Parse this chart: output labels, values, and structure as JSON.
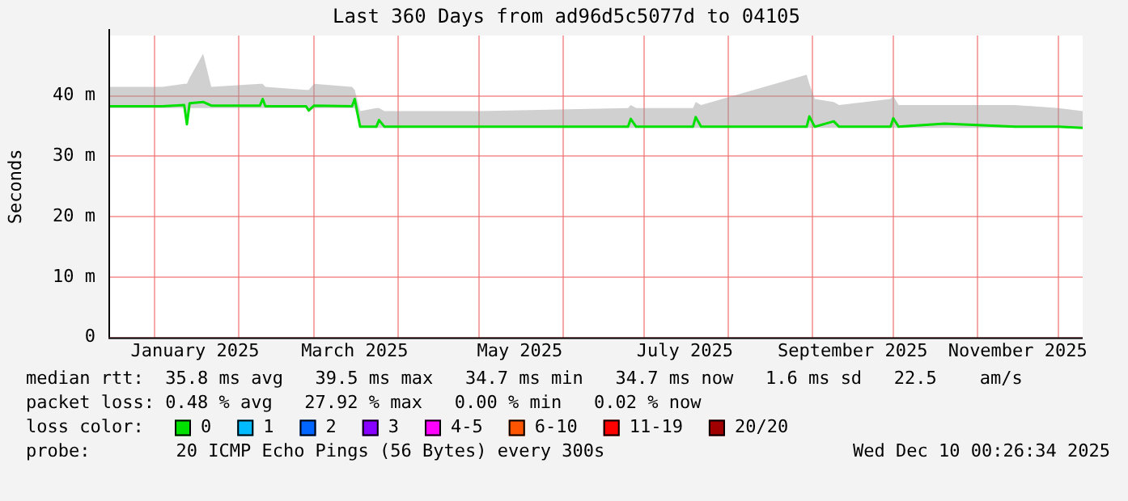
{
  "chart_data": {
    "type": "line",
    "title": "Last 360 Days from ad96d5c5077d to 04105",
    "ylabel": "Seconds",
    "legend_title": "loss color:",
    "legend": "bottom",
    "x": [
      "2024-12-15",
      "2025-01-04",
      "2025-01-12",
      "2025-01-13",
      "2025-01-14",
      "2025-01-19",
      "2025-01-22",
      "2025-02-09",
      "2025-02-10",
      "2025-02-11",
      "2025-02-26",
      "2025-02-27",
      "2025-03-01",
      "2025-03-15",
      "2025-03-16",
      "2025-03-18",
      "2025-03-24",
      "2025-03-25",
      "2025-03-27",
      "2025-05-01",
      "2025-06-25",
      "2025-06-26",
      "2025-06-28",
      "2025-07-19",
      "2025-07-20",
      "2025-07-22",
      "2025-08-30",
      "2025-08-31",
      "2025-09-02",
      "2025-09-09",
      "2025-09-11",
      "2025-09-30",
      "2025-10-01",
      "2025-10-03",
      "2025-10-20",
      "2025-11-15",
      "2025-12-01",
      "2025-12-10"
    ],
    "series": [
      {
        "name": "0",
        "color": "#00e000",
        "values": [
          38.3,
          38.3,
          38.5,
          35.3,
          38.8,
          39.0,
          38.4,
          38.4,
          39.5,
          38.3,
          38.3,
          37.6,
          38.4,
          38.3,
          39.5,
          34.9,
          34.9,
          36.0,
          34.9,
          34.9,
          34.9,
          36.2,
          34.9,
          34.9,
          36.5,
          34.9,
          34.9,
          36.6,
          34.9,
          35.8,
          34.9,
          34.9,
          36.3,
          34.9,
          35.4,
          34.9,
          34.9,
          34.7
        ],
        "lower": [
          38.0,
          38.0,
          38.0,
          35.0,
          38.0,
          38.0,
          38.0,
          38.0,
          38.0,
          38.0,
          38.0,
          37.3,
          38.0,
          38.0,
          38.0,
          34.7,
          34.7,
          34.7,
          34.7,
          34.7,
          34.7,
          34.7,
          34.7,
          34.7,
          34.7,
          34.7,
          34.7,
          34.7,
          34.7,
          34.7,
          34.7,
          34.7,
          34.7,
          34.7,
          34.7,
          34.7,
          34.7,
          34.6
        ],
        "upper": [
          41.5,
          41.5,
          42.0,
          42.0,
          43.0,
          47.0,
          41.5,
          42.0,
          42.0,
          41.5,
          41.0,
          41.0,
          42.0,
          41.5,
          41.0,
          37.5,
          38.0,
          38.0,
          37.5,
          37.5,
          38.0,
          38.5,
          38.0,
          38.0,
          39.0,
          38.5,
          43.5,
          42.0,
          39.5,
          39.0,
          38.5,
          39.5,
          40.0,
          38.5,
          38.5,
          38.5,
          38.0,
          37.5
        ]
      },
      {
        "name": "1",
        "color": "#00bbff",
        "values": [
          null,
          null,
          null,
          null,
          null,
          null,
          null,
          null,
          null,
          null,
          null,
          null,
          null,
          null,
          null,
          null,
          null,
          null,
          null,
          null,
          null,
          null,
          null,
          null,
          null,
          null,
          null,
          null,
          null,
          null,
          null,
          null,
          null,
          null,
          null,
          null,
          null,
          null
        ]
      },
      {
        "name": "2",
        "color": "#0066ff",
        "values": [
          null,
          null,
          null,
          null,
          null,
          null,
          null,
          null,
          null,
          null,
          null,
          null,
          null,
          null,
          null,
          null,
          null,
          null,
          null,
          null,
          null,
          null,
          null,
          null,
          null,
          null,
          null,
          null,
          null,
          null,
          null,
          null,
          null,
          null,
          null,
          null,
          null,
          null
        ]
      },
      {
        "name": "3",
        "color": "#8800ff",
        "values": [
          null,
          null,
          null,
          null,
          null,
          null,
          null,
          null,
          null,
          null,
          null,
          null,
          null,
          null,
          null,
          null,
          null,
          null,
          null,
          null,
          null,
          null,
          null,
          null,
          null,
          null,
          null,
          null,
          null,
          null,
          null,
          null,
          null,
          null,
          null,
          null,
          null,
          null
        ]
      },
      {
        "name": "4-5",
        "color": "#ff00ff",
        "values": [
          null,
          null,
          null,
          null,
          null,
          null,
          null,
          null,
          null,
          null,
          null,
          null,
          null,
          null,
          null,
          null,
          null,
          null,
          null,
          null,
          null,
          null,
          null,
          null,
          null,
          null,
          null,
          null,
          null,
          null,
          null,
          null,
          null,
          null,
          null,
          null,
          null,
          null
        ]
      },
      {
        "name": "6-10",
        "color": "#ff5500",
        "values": [
          null,
          null,
          null,
          null,
          null,
          null,
          null,
          null,
          null,
          null,
          null,
          null,
          null,
          null,
          null,
          null,
          null,
          null,
          null,
          null,
          null,
          null,
          null,
          null,
          null,
          null,
          null,
          null,
          null,
          null,
          null,
          null,
          null,
          null,
          null,
          null,
          null,
          null
        ]
      },
      {
        "name": "11-19",
        "color": "#ff0000",
        "values": [
          null,
          null,
          null,
          null,
          null,
          null,
          null,
          null,
          null,
          null,
          null,
          null,
          null,
          null,
          null,
          null,
          null,
          null,
          null,
          null,
          null,
          null,
          null,
          null,
          null,
          null,
          null,
          null,
          null,
          null,
          null,
          null,
          null,
          null,
          null,
          null,
          null,
          null
        ]
      },
      {
        "name": "20/20",
        "color": "#a10000",
        "values": [
          null,
          null,
          null,
          null,
          null,
          null,
          null,
          null,
          null,
          null,
          null,
          null,
          null,
          null,
          null,
          null,
          null,
          null,
          null,
          null,
          null,
          null,
          null,
          null,
          null,
          null,
          null,
          null,
          null,
          null,
          null,
          null,
          null,
          null,
          null,
          null,
          null,
          null
        ]
      }
    ],
    "xlim": [
      "2024-12-15",
      "2025-12-10"
    ],
    "xticks": [
      {
        "value": "2025-01-01",
        "label": null
      },
      {
        "value": "2025-01-16",
        "label": "January 2025"
      },
      {
        "value": "2025-02-01",
        "label": null
      },
      {
        "value": "2025-03-01",
        "label": null
      },
      {
        "value": "2025-03-16",
        "label": "March 2025"
      },
      {
        "value": "2025-04-01",
        "label": null
      },
      {
        "value": "2025-05-01",
        "label": null
      },
      {
        "value": "2025-05-16",
        "label": "May 2025"
      },
      {
        "value": "2025-06-01",
        "label": null
      },
      {
        "value": "2025-07-01",
        "label": null
      },
      {
        "value": "2025-07-16",
        "label": "July 2025"
      },
      {
        "value": "2025-08-01",
        "label": null
      },
      {
        "value": "2025-09-01",
        "label": null
      },
      {
        "value": "2025-09-16",
        "label": "September 2025"
      },
      {
        "value": "2025-10-01",
        "label": null
      },
      {
        "value": "2025-11-01",
        "label": null
      },
      {
        "value": "2025-11-16",
        "label": "November 2025"
      },
      {
        "value": "2025-12-01",
        "label": null
      }
    ],
    "ylim": [
      0,
      50
    ],
    "yticks": [
      0,
      {
        "value": 10,
        "label": "10 m"
      },
      {
        "value": 20,
        "label": "20 m"
      },
      {
        "value": 30,
        "label": "30 m"
      },
      {
        "value": 40,
        "label": "40 m"
      }
    ],
    "grid": true,
    "marker": "none",
    "line_style": "solid",
    "annotations": [
      "median rtt:  35.8 ms avg   39.5 ms max   34.7 ms min   34.7 ms now   1.6 ms sd   22.5    am/s",
      "packet loss: 0.48 % avg   27.92 % max   0.00 % min   0.02 % now",
      "probe:        20 ICMP Echo Pings (56 Bytes) every 300s",
      "Wed Dec 10 00:26:34 2025"
    ]
  }
}
